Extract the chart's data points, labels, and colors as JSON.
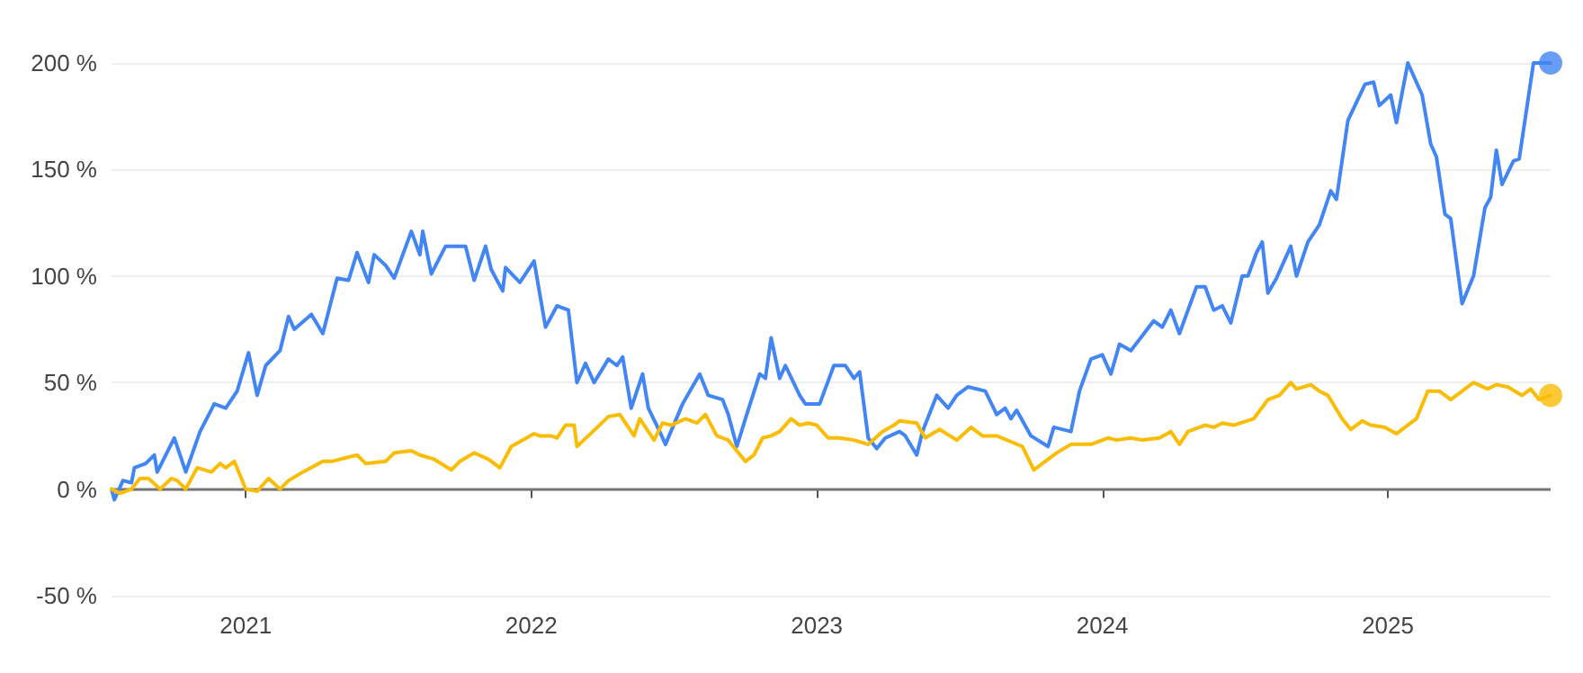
{
  "chart_data": {
    "type": "line",
    "xlim": [
      2020.53,
      2025.57
    ],
    "ylim": [
      -50,
      200
    ],
    "xticks": [
      {
        "value": 2021,
        "label": "2021"
      },
      {
        "value": 2022,
        "label": "2022"
      },
      {
        "value": 2023,
        "label": "2023"
      },
      {
        "value": 2024,
        "label": "2024"
      },
      {
        "value": 2025,
        "label": "2025"
      }
    ],
    "yticks": [
      {
        "value": -50,
        "label": "-50 %"
      },
      {
        "value": 0,
        "label": "0 %"
      },
      {
        "value": 50,
        "label": "50 %"
      },
      {
        "value": 100,
        "label": "100 %"
      },
      {
        "value": 150,
        "label": "150 %"
      },
      {
        "value": 200,
        "label": "200 %"
      }
    ],
    "grid": "y",
    "marker": "none",
    "line_style": "solid",
    "ref_lines": [
      {
        "axis": "y",
        "value": 0,
        "color": "#757575"
      }
    ],
    "series": [
      {
        "color": "#4285f4",
        "x": [
          2020.53,
          2020.54,
          2020.57,
          2020.6,
          2020.61,
          2020.65,
          2020.68,
          2020.69,
          2020.75,
          2020.79,
          2020.84,
          2020.89,
          2020.93,
          2020.97,
          2021.01,
          2021.04,
          2021.07,
          2021.12,
          2021.15,
          2021.17,
          2021.23,
          2021.27,
          2021.32,
          2021.36,
          2021.39,
          2021.43,
          2021.45,
          2021.49,
          2021.52,
          2021.58,
          2021.61,
          2021.62,
          2021.65,
          2021.7,
          2021.77,
          2021.8,
          2021.84,
          2021.86,
          2021.9,
          2021.91,
          2021.96,
          2022.01,
          2022.05,
          2022.09,
          2022.13,
          2022.16,
          2022.19,
          2022.22,
          2022.27,
          2022.3,
          2022.32,
          2022.35,
          2022.39,
          2022.41,
          2022.45,
          2022.47,
          2022.53,
          2022.59,
          2022.62,
          2022.67,
          2022.69,
          2022.72,
          2022.75,
          2022.8,
          2022.82,
          2022.84,
          2022.87,
          2022.89,
          2022.94,
          2022.96,
          2023.01,
          2023.06,
          2023.1,
          2023.13,
          2023.15,
          2023.18,
          2023.21,
          2023.24,
          2023.29,
          2023.31,
          2023.35,
          2023.37,
          2023.42,
          2023.46,
          2023.49,
          2023.53,
          2023.59,
          2023.63,
          2023.66,
          2023.68,
          2023.7,
          2023.75,
          2023.81,
          2023.83,
          2023.89,
          2023.92,
          2023.96,
          2024.0,
          2024.03,
          2024.06,
          2024.1,
          2024.18,
          2024.21,
          2024.24,
          2024.27,
          2024.33,
          2024.36,
          2024.39,
          2024.42,
          2024.45,
          2024.49,
          2024.51,
          2024.54,
          2024.56,
          2024.58,
          2024.61,
          2024.66,
          2024.68,
          2024.72,
          2024.76,
          2024.8,
          2024.82,
          2024.86,
          2024.92,
          2024.95,
          2024.97,
          2025.01,
          2025.03,
          2025.07,
          2025.12,
          2025.15,
          2025.17,
          2025.2,
          2025.22,
          2025.26,
          2025.3,
          2025.34,
          2025.36,
          2025.38,
          2025.4,
          2025.44,
          2025.46,
          2025.51,
          2025.57
        ],
        "values": [
          0,
          -5,
          4,
          3,
          10,
          12,
          16,
          8,
          24,
          8,
          27,
          40,
          38,
          46,
          64,
          44,
          58,
          65,
          81,
          75,
          82,
          73,
          99,
          98,
          111,
          97,
          110,
          105,
          99,
          121,
          110,
          121,
          101,
          114,
          114,
          98,
          114,
          103,
          93,
          104,
          97,
          107,
          76,
          86,
          84,
          50,
          59,
          50,
          61,
          58,
          62,
          38,
          54,
          38,
          27,
          21,
          40,
          54,
          44,
          42,
          35,
          20,
          33,
          54,
          52,
          71,
          52,
          58,
          44,
          40,
          40,
          58,
          58,
          52,
          55,
          24,
          19,
          24,
          27,
          25,
          16,
          27,
          44,
          38,
          44,
          48,
          46,
          35,
          38,
          33,
          37,
          25,
          20,
          29,
          27,
          46,
          61,
          63,
          54,
          68,
          65,
          79,
          76,
          84,
          73,
          95,
          95,
          84,
          86,
          78,
          100,
          100,
          111,
          116,
          92,
          99,
          114,
          100,
          116,
          124,
          140,
          136,
          173,
          190,
          191,
          180,
          185,
          172,
          200,
          185,
          162,
          156,
          129,
          127,
          87,
          100,
          132,
          137,
          159,
          143,
          154,
          155,
          200,
          200
        ]
      },
      {
        "type": "scatter",
        "marker": "circle",
        "color": "#4285f4",
        "x": [
          2025.57
        ],
        "values": [
          200
        ]
      },
      {
        "color": "#fbbc04",
        "x": [
          2020.53,
          2020.56,
          2020.6,
          2020.63,
          2020.66,
          2020.7,
          2020.74,
          2020.76,
          2020.79,
          2020.83,
          2020.88,
          2020.91,
          2020.93,
          2020.96,
          2021.0,
          2021.04,
          2021.08,
          2021.12,
          2021.15,
          2021.2,
          2021.27,
          2021.3,
          2021.39,
          2021.42,
          2021.49,
          2021.52,
          2021.58,
          2021.61,
          2021.66,
          2021.72,
          2021.75,
          2021.8,
          2021.85,
          2021.89,
          2021.93,
          2022.01,
          2022.03,
          2022.07,
          2022.09,
          2022.12,
          2022.15,
          2022.16,
          2022.2,
          2022.27,
          2022.31,
          2022.36,
          2022.38,
          2022.43,
          2022.46,
          2022.49,
          2022.54,
          2022.58,
          2022.61,
          2022.65,
          2022.69,
          2022.75,
          2022.78,
          2022.81,
          2022.84,
          2022.87,
          2022.91,
          2022.94,
          2022.97,
          2023.0,
          2023.04,
          2023.08,
          2023.13,
          2023.18,
          2023.23,
          2023.27,
          2023.29,
          2023.35,
          2023.38,
          2023.43,
          2023.49,
          2023.54,
          2023.58,
          2023.63,
          2023.72,
          2023.76,
          2023.81,
          2023.84,
          2023.89,
          2023.96,
          2024.02,
          2024.05,
          2024.1,
          2024.14,
          2024.2,
          2024.24,
          2024.27,
          2024.3,
          2024.36,
          2024.39,
          2024.42,
          2024.46,
          2024.53,
          2024.58,
          2024.62,
          2024.66,
          2024.68,
          2024.73,
          2024.76,
          2024.79,
          2024.84,
          2024.87,
          2024.91,
          2024.94,
          2024.99,
          2025.03,
          2025.06,
          2025.1,
          2025.14,
          2025.18,
          2025.22,
          2025.25,
          2025.3,
          2025.35,
          2025.38,
          2025.42,
          2025.47,
          2025.5,
          2025.53,
          2025.57
        ],
        "values": [
          0,
          -2,
          0,
          5,
          5,
          0,
          5,
          4,
          0,
          10,
          8,
          12,
          10,
          13,
          0,
          -1,
          5,
          0,
          4,
          8,
          13,
          13,
          16,
          12,
          13,
          17,
          18,
          16,
          14,
          9,
          13,
          17,
          14,
          10,
          20,
          26,
          25,
          25,
          24,
          30,
          30,
          20,
          25,
          34,
          35,
          25,
          33,
          23,
          31,
          30,
          33,
          31,
          35,
          25,
          23,
          13,
          16,
          24,
          25,
          27,
          33,
          30,
          31,
          30,
          24,
          24,
          23,
          21,
          27,
          30,
          32,
          31,
          24,
          28,
          23,
          29,
          25,
          25,
          20,
          9,
          14,
          17,
          21,
          21,
          24,
          23,
          24,
          23,
          24,
          27,
          21,
          27,
          30,
          29,
          31,
          30,
          33,
          42,
          44,
          50,
          47,
          49,
          46,
          44,
          33,
          28,
          32,
          30,
          29,
          26,
          29,
          33,
          46,
          46,
          42,
          45,
          50,
          47,
          49,
          48,
          44,
          47,
          42,
          44
        ]
      },
      {
        "type": "scatter",
        "marker": "circle",
        "color": "#fbbc04",
        "x": [
          2025.57
        ],
        "values": [
          44
        ]
      }
    ]
  }
}
